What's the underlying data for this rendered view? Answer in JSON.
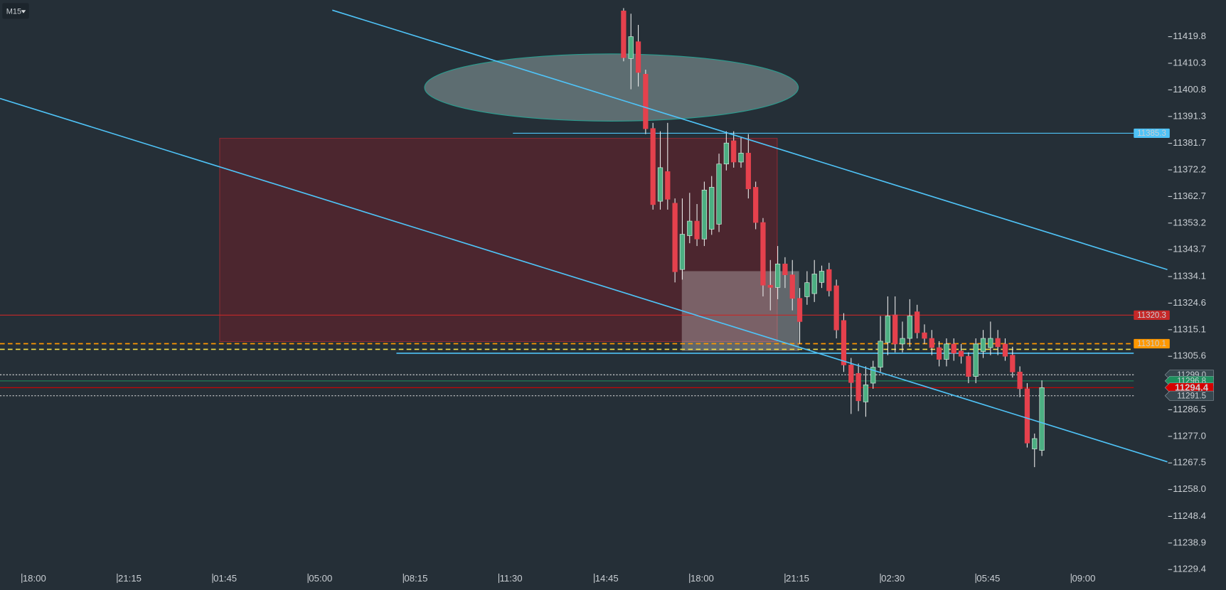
{
  "timeframe": "M15",
  "chart_data": {
    "type": "candlestick",
    "x": [
      82,
      83,
      84,
      85,
      86,
      87,
      88,
      89,
      90,
      91,
      92,
      93,
      94,
      95,
      96,
      97,
      98,
      99,
      100,
      101,
      102,
      103,
      104,
      105,
      106,
      107,
      108,
      109,
      110,
      111,
      112,
      113,
      114,
      115,
      116,
      117,
      118,
      119,
      120,
      121,
      122,
      123,
      124,
      125,
      126,
      127,
      128,
      129,
      130,
      131,
      132,
      133,
      134,
      135,
      136,
      137,
      138,
      139
    ],
    "open": [
      11429,
      11412,
      11418,
      11406.4,
      11387,
      11361,
      11371.6,
      11360.3,
      11336.6,
      11348.7,
      11353.9,
      11347.5,
      11351,
      11352.8,
      11374.3,
      11382.6,
      11375,
      11378.2,
      11366,
      11353.4,
      11331,
      11330.2,
      11338.6,
      11334.7,
      11326.3,
      11326.9,
      11328,
      11332,
      11336.6,
      11330.8,
      11318.4,
      11302.5,
      11299.5,
      11289.3,
      11296,
      11301.7,
      11310.5,
      11320.4,
      11310,
      11312,
      11321.5,
      11314,
      11312,
      11308.7,
      11304.5,
      11310,
      11307.5,
      11305.6,
      11298.4,
      11307.3,
      11308.7,
      11312,
      11310,
      11306,
      11300,
      11294,
      11272.5,
      11272
    ],
    "high": [
      11430,
      11428,
      11424,
      11408,
      11389,
      11386,
      11389,
      11362,
      11362,
      11364,
      11360,
      11368,
      11370,
      11378,
      11386,
      11386,
      11384,
      11385,
      11368,
      11355,
      11340,
      11345,
      11341,
      11340,
      11330,
      11336,
      11340,
      11338,
      11339,
      11333,
      11321,
      11305,
      11303,
      11302,
      11304,
      11320,
      11327,
      11327,
      11318,
      11326,
      11324,
      11317,
      11315,
      11311,
      11312,
      11312,
      11310,
      11307,
      11312,
      11315,
      11318,
      11315,
      11312,
      11309,
      11302,
      11296,
      11278,
      11297
    ],
    "low": [
      11411,
      11401,
      11402,
      11385,
      11358,
      11358,
      11358,
      11332,
      11333,
      11346,
      11345,
      11345,
      11349,
      11350,
      11372,
      11373,
      11373,
      11362,
      11351,
      11327,
      11322,
      11326,
      11330,
      11322,
      11310,
      11324,
      11325,
      11330,
      11327,
      11312,
      11300,
      11285,
      11286,
      11284,
      11294,
      11300,
      11306,
      11307,
      11307,
      11309,
      11312,
      11310,
      11306,
      11302,
      11302,
      11304,
      11303,
      11296,
      11296,
      11305,
      11306,
      11306,
      11304,
      11298,
      11291,
      11273,
      11266,
      11270
    ],
    "close": [
      11412.3,
      11419.8,
      11407,
      11386.9,
      11359.8,
      11373,
      11361.7,
      11335.8,
      11349.2,
      11353.9,
      11347.5,
      11365,
      11366,
      11374.3,
      11381.8,
      11375,
      11378.2,
      11365.4,
      11353.4,
      11331,
      11330.2,
      11338.6,
      11334.7,
      11326.3,
      11318,
      11331.9,
      11335,
      11336,
      11329,
      11315,
      11302.5,
      11296.2,
      11289.7,
      11295.4,
      11301.7,
      11311,
      11320,
      11310,
      11312,
      11320,
      11314,
      11312,
      11308.7,
      11304.5,
      11310,
      11306.7,
      11305.6,
      11298.4,
      11310,
      11312,
      11312,
      11309,
      11305.6,
      11300,
      11294,
      11274.6,
      11276.2,
      11294.4
    ],
    "up_color": "#4caf82",
    "down_color": "#e5414d",
    "xlim": [
      -2.98,
      156.1
    ],
    "ylim": [
      11222.1,
      11432.9
    ],
    "xticks": [
      {
        "value": 0,
        "label": "18:00"
      },
      {
        "value": 13,
        "label": "21:15"
      },
      {
        "value": 26,
        "label": "01:45"
      },
      {
        "value": 39,
        "label": "05:00"
      },
      {
        "value": 52,
        "label": "08:15"
      },
      {
        "value": 65,
        "label": "11:30"
      },
      {
        "value": 78,
        "label": "14:45"
      },
      {
        "value": 91,
        "label": "18:00"
      },
      {
        "value": 104,
        "label": "21:15"
      },
      {
        "value": 117,
        "label": "02:30"
      },
      {
        "value": 130,
        "label": "05:45"
      },
      {
        "value": 143,
        "label": "09:00"
      }
    ],
    "yticks": [
      11419.8,
      11410.3,
      11400.8,
      11391.3,
      11381.7,
      11372.2,
      11362.7,
      11353.2,
      11343.7,
      11334.1,
      11324.6,
      11315.1,
      11305.6,
      11286.5,
      {
        "value": 11277,
        "label": "11277.0"
      },
      11267.5,
      {
        "value": 11258,
        "label": "11258.0"
      },
      11248.4,
      11238.9,
      11229.4
    ],
    "price_levels": [
      {
        "value": 11385.3,
        "color": "#4fc3f7",
        "text_color": "#ffffff",
        "line": "solid"
      },
      {
        "value": 11320.3,
        "color": "#c62828",
        "text_color": "#ffffff",
        "line": "solid"
      },
      {
        "value": 11310.1,
        "color": "#ff9800",
        "text_color": "#3a2a00",
        "line": "dashed"
      },
      {
        "value": 11299,
        "label": "11299.0",
        "color": "#37474f",
        "text_color": "#ffffff",
        "line": "dotted"
      },
      {
        "value": 11296.8,
        "color": "#1e8f5e",
        "text_color": "#ffffff",
        "line": "solid"
      },
      {
        "value": 11294.4,
        "color": "#d50000",
        "text_color": "#ffffff",
        "line": "solid"
      },
      {
        "value": 11291.5,
        "color": "#37474f",
        "text_color": "#ffffff",
        "line": "dotted"
      }
    ]
  }
}
